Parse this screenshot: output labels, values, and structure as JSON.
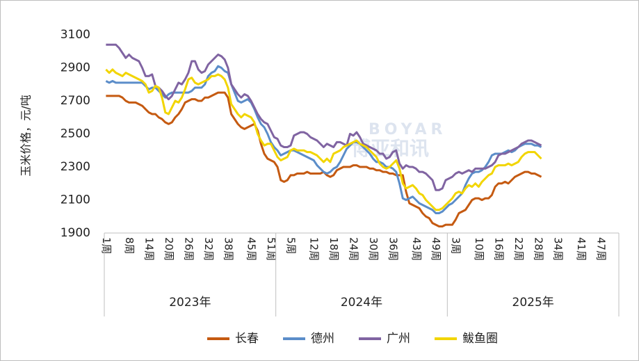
{
  "chart_data": {
    "type": "line",
    "y_label": "玉米价格，元/吨",
    "watermark": [
      "BOYAR",
      "博亚和讯"
    ],
    "groups": [
      "2023年",
      "2024年",
      "2025年"
    ],
    "categories": [
      "1周",
      null,
      null,
      null,
      null,
      null,
      null,
      "8周",
      null,
      null,
      null,
      null,
      null,
      "14周",
      null,
      null,
      null,
      null,
      null,
      "20周",
      null,
      null,
      null,
      null,
      null,
      "26周",
      null,
      null,
      null,
      null,
      null,
      "32周",
      null,
      null,
      null,
      null,
      null,
      "38周",
      null,
      null,
      null,
      null,
      null,
      null,
      "45周",
      null,
      null,
      null,
      null,
      null,
      "51周",
      null,
      null,
      null,
      null,
      null,
      "5周",
      null,
      null,
      null,
      null,
      null,
      null,
      "12周",
      null,
      null,
      null,
      null,
      null,
      "18周",
      null,
      null,
      null,
      null,
      null,
      "24周",
      null,
      null,
      null,
      null,
      null,
      "30周",
      null,
      null,
      null,
      null,
      null,
      "36周",
      null,
      null,
      null,
      null,
      null,
      null,
      "43周",
      null,
      null,
      null,
      null,
      null,
      "49周",
      null,
      null,
      null,
      null,
      null,
      "3周",
      null,
      null,
      null,
      null,
      null,
      null,
      "10周",
      null,
      null,
      null,
      null,
      null,
      "16周",
      null,
      null,
      null,
      null,
      null,
      "22周",
      null,
      null,
      null,
      null,
      null,
      "28周",
      null,
      null,
      null,
      null,
      null,
      "34周",
      null,
      null,
      null,
      null,
      null,
      null,
      "41周",
      null,
      null,
      null,
      null,
      null,
      "47周",
      null,
      null,
      null,
      null,
      null
    ],
    "series": [
      {
        "name": "长春",
        "color": "#c55a11",
        "values": [
          2730,
          2730,
          2730,
          2730,
          2730,
          2720,
          2700,
          2690,
          2690,
          2690,
          2680,
          2670,
          2650,
          2630,
          2620,
          2620,
          2600,
          2590,
          2570,
          2560,
          2570,
          2600,
          2620,
          2650,
          2690,
          2700,
          2710,
          2710,
          2700,
          2700,
          2720,
          2720,
          2730,
          2740,
          2750,
          2750,
          2750,
          2720,
          2620,
          2590,
          2560,
          2540,
          2530,
          2540,
          2550,
          2560,
          2520,
          2440,
          2380,
          2350,
          2340,
          2330,
          2300,
          2220,
          2210,
          2220,
          2250,
          2250,
          2260,
          2260,
          2260,
          2270,
          2260,
          2260,
          2260,
          2260,
          2270,
          2250,
          2240,
          2250,
          2280,
          2290,
          2300,
          2300,
          2300,
          2310,
          2310,
          2300,
          2300,
          2300,
          2290,
          2290,
          2280,
          2280,
          2270,
          2270,
          2260,
          2260,
          2250,
          2250,
          2250,
          2150,
          2080,
          2070,
          2060,
          2050,
          2020,
          2000,
          1990,
          1960,
          1950,
          1940,
          1940,
          1950,
          1950,
          1950,
          1980,
          2020,
          2030,
          2040,
          2070,
          2100,
          2110,
          2110,
          2100,
          2110,
          2110,
          2130,
          2180,
          2200,
          2200,
          2210,
          2200,
          2220,
          2240,
          2250,
          2260,
          2270,
          2270,
          2260,
          2260,
          2250,
          2240,
          null,
          null,
          null,
          null,
          null,
          null,
          null,
          null,
          null,
          null,
          null,
          null,
          null,
          null,
          null,
          null,
          null,
          null,
          null,
          null,
          null,
          null,
          null
        ]
      },
      {
        "name": "德州",
        "color": "#5b8dc9",
        "values": [
          2820,
          2810,
          2820,
          2810,
          2810,
          2810,
          2810,
          2810,
          2810,
          2810,
          2810,
          2810,
          2790,
          2770,
          2780,
          2780,
          2760,
          2740,
          2720,
          2740,
          2750,
          2750,
          2750,
          2750,
          2750,
          2750,
          2760,
          2780,
          2780,
          2780,
          2800,
          2850,
          2870,
          2880,
          2910,
          2900,
          2880,
          2870,
          2800,
          2750,
          2700,
          2690,
          2700,
          2710,
          2690,
          2650,
          2600,
          2560,
          2540,
          2500,
          2450,
          2420,
          2400,
          2370,
          2380,
          2390,
          2400,
          2400,
          2390,
          2380,
          2370,
          2360,
          2350,
          2340,
          2310,
          2290,
          2270,
          2260,
          2270,
          2290,
          2300,
          2330,
          2370,
          2410,
          2430,
          2450,
          2450,
          2440,
          2420,
          2400,
          2380,
          2350,
          2330,
          2330,
          2320,
          2300,
          2300,
          2290,
          2270,
          2200,
          2110,
          2100,
          2110,
          2120,
          2100,
          2080,
          2070,
          2060,
          2050,
          2040,
          2020,
          2020,
          2030,
          2050,
          2070,
          2080,
          2100,
          2120,
          2140,
          2190,
          2230,
          2260,
          2270,
          2270,
          2280,
          2300,
          2330,
          2370,
          2380,
          2380,
          2380,
          2390,
          2400,
          2390,
          2400,
          2420,
          2430,
          2440,
          2440,
          2440,
          2430,
          2430,
          2420,
          null,
          null,
          null,
          null,
          null,
          null,
          null,
          null,
          null,
          null,
          null,
          null,
          null,
          null,
          null,
          null,
          null,
          null,
          null,
          null,
          null,
          null,
          null
        ]
      },
      {
        "name": "广州",
        "color": "#8064a2",
        "values": [
          3040,
          3040,
          3040,
          3040,
          3020,
          2990,
          2960,
          2980,
          2960,
          2950,
          2940,
          2900,
          2850,
          2850,
          2860,
          2790,
          2780,
          2760,
          2730,
          2710,
          2730,
          2770,
          2810,
          2800,
          2830,
          2870,
          2940,
          2940,
          2890,
          2870,
          2880,
          2920,
          2940,
          2960,
          2980,
          2970,
          2950,
          2900,
          2800,
          2770,
          2740,
          2720,
          2740,
          2730,
          2700,
          2660,
          2620,
          2590,
          2570,
          2560,
          2520,
          2480,
          2470,
          2430,
          2420,
          2420,
          2430,
          2490,
          2500,
          2510,
          2510,
          2500,
          2480,
          2470,
          2460,
          2440,
          2420,
          2440,
          2430,
          2420,
          2450,
          2450,
          2440,
          2430,
          2500,
          2490,
          2510,
          2480,
          2440,
          2430,
          2420,
          2410,
          2400,
          2380,
          2380,
          2350,
          2360,
          2390,
          2400,
          2320,
          2290,
          2310,
          2300,
          2300,
          2290,
          2270,
          2270,
          2260,
          2240,
          2220,
          2160,
          2160,
          2170,
          2220,
          2230,
          2240,
          2260,
          2270,
          2260,
          2270,
          2280,
          2270,
          2290,
          2290,
          2290,
          2290,
          2300,
          2310,
          2330,
          2370,
          2380,
          2380,
          2390,
          2400,
          2410,
          2420,
          2440,
          2450,
          2460,
          2460,
          2450,
          2440,
          2430,
          null,
          null,
          null,
          null,
          null,
          null,
          null,
          null,
          null,
          null,
          null,
          null,
          null,
          null,
          null,
          null,
          null,
          null,
          null,
          null,
          null,
          null,
          null
        ]
      },
      {
        "name": "鲅鱼圈",
        "color": "#f2d500",
        "values": [
          2890,
          2870,
          2890,
          2870,
          2860,
          2850,
          2870,
          2860,
          2850,
          2840,
          2830,
          2820,
          2800,
          2750,
          2760,
          2790,
          2780,
          2720,
          2630,
          2620,
          2660,
          2700,
          2690,
          2720,
          2770,
          2830,
          2840,
          2810,
          2800,
          2810,
          2820,
          2830,
          2850,
          2850,
          2860,
          2850,
          2830,
          2780,
          2680,
          2650,
          2620,
          2600,
          2620,
          2610,
          2600,
          2570,
          2500,
          2460,
          2430,
          2440,
          2440,
          2400,
          2360,
          2340,
          2350,
          2360,
          2400,
          2410,
          2400,
          2400,
          2400,
          2390,
          2390,
          2380,
          2370,
          2350,
          2330,
          2350,
          2330,
          2380,
          2390,
          2400,
          2420,
          2430,
          2440,
          2450,
          2460,
          2440,
          2430,
          2420,
          2400,
          2380,
          2360,
          2320,
          2300,
          2290,
          2300,
          2320,
          2340,
          2290,
          2200,
          2170,
          2180,
          2190,
          2170,
          2140,
          2130,
          2100,
          2080,
          2060,
          2040,
          2040,
          2050,
          2070,
          2090,
          2110,
          2140,
          2150,
          2140,
          2170,
          2190,
          2180,
          2200,
          2180,
          2210,
          2230,
          2250,
          2260,
          2300,
          2310,
          2310,
          2310,
          2320,
          2310,
          2320,
          2330,
          2360,
          2380,
          2390,
          2390,
          2390,
          2370,
          2350,
          null,
          null,
          null,
          null,
          null,
          null,
          null,
          null,
          null,
          null,
          null,
          null,
          null,
          null,
          null,
          null,
          null,
          null,
          null,
          null,
          null,
          null,
          null
        ]
      }
    ],
    "ylim": [
      1900,
      3100
    ],
    "yticks": [
      1900,
      2100,
      2300,
      2500,
      2700,
      2900,
      3100
    ],
    "grid": false,
    "legend": "bottom"
  }
}
